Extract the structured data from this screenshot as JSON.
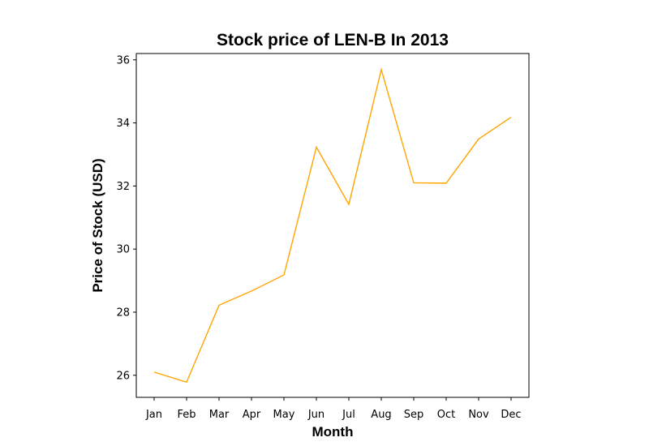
{
  "chart_data": {
    "type": "line",
    "title": "Stock price of LEN-B In 2013",
    "xlabel": "Month",
    "ylabel": "Price of Stock (USD)",
    "categories": [
      "Jan",
      "Feb",
      "Mar",
      "Apr",
      "May",
      "Jun",
      "Jul",
      "Aug",
      "Sep",
      "Oct",
      "Nov",
      "Dec"
    ],
    "series": [
      {
        "values": [
          26.1,
          25.78,
          28.22,
          28.67,
          29.18,
          33.23,
          31.42,
          35.69,
          32.1,
          32.09,
          33.49,
          34.18
        ],
        "color": "#FFA500"
      }
    ],
    "yticks": [
      26,
      28,
      30,
      32,
      34,
      36
    ],
    "ylim": [
      25.3,
      36.2
    ],
    "grid": false
  }
}
